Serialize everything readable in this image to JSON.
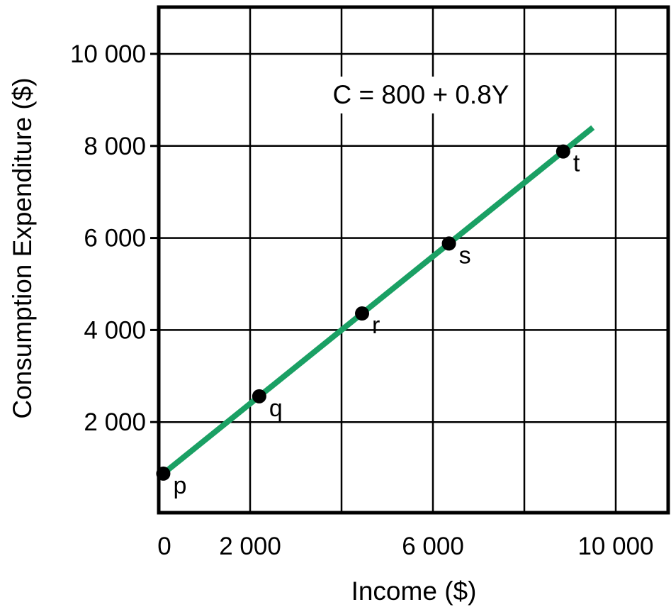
{
  "chart_data": {
    "type": "line",
    "title": "",
    "xlabel": "Income ($)",
    "ylabel": "Consumption Expenditure ($)",
    "annotation": "C = 800 + 0.8Y",
    "xlim": [
      0,
      11000
    ],
    "ylim": [
      -1000,
      11000
    ],
    "grid": true,
    "x_ticks": [
      {
        "value": 0,
        "label": "0"
      },
      {
        "value": 2000,
        "label": "2 000"
      },
      {
        "value": 6000,
        "label": "6 000"
      },
      {
        "value": 10000,
        "label": "10 000"
      }
    ],
    "y_ticks": [
      {
        "value": 2000,
        "label": "2 000"
      },
      {
        "value": 4000,
        "label": "4 000"
      },
      {
        "value": 6000,
        "label": "6 000"
      },
      {
        "value": 8000,
        "label": "8 000"
      },
      {
        "value": 10000,
        "label": "10 000"
      }
    ],
    "x_gridlines": [
      2000,
      4000,
      6000,
      8000,
      10000
    ],
    "y_gridlines": [
      2000,
      4000,
      6000,
      8000,
      10000
    ],
    "line": {
      "color": "#1aa064",
      "x": [
        0,
        9500
      ],
      "y": [
        800,
        8400
      ]
    },
    "points": [
      {
        "label": "p",
        "x": 100,
        "y": 880
      },
      {
        "label": "q",
        "x": 2200,
        "y": 2560
      },
      {
        "label": "r",
        "x": 4450,
        "y": 4360
      },
      {
        "label": "s",
        "x": 6350,
        "y": 5880
      },
      {
        "label": "t",
        "x": 8850,
        "y": 7880
      }
    ]
  }
}
